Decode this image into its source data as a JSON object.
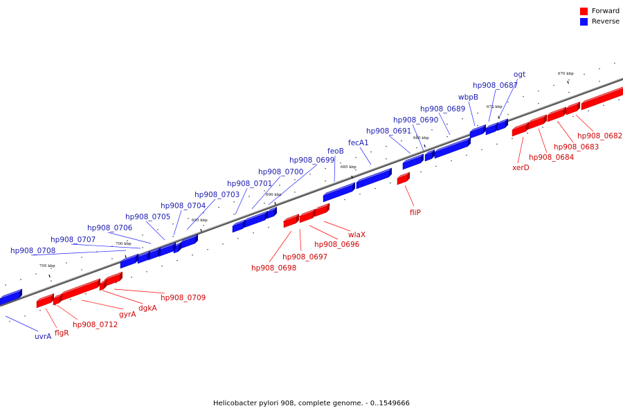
{
  "legend": {
    "forward_label": "Forward",
    "reverse_label": "Reverse",
    "forward_color": "#ff0000",
    "reverse_color": "#1010ff"
  },
  "caption": "Helicobacter pylori 908, complete genome. - 0..1549666",
  "ticks": [
    "670 kbp",
    "675 kbp",
    "680 kbp",
    "685 kbp",
    "690 kbp",
    "695 kbp",
    "700 kbp",
    "705 kbp"
  ],
  "genes": [
    {
      "name": "ogt",
      "strand": "reverse"
    },
    {
      "name": "hp908_0687",
      "strand": "reverse"
    },
    {
      "name": "wbpB",
      "strand": "reverse"
    },
    {
      "name": "hp908_0689",
      "strand": "reverse"
    },
    {
      "name": "hp908_0690",
      "strand": "reverse"
    },
    {
      "name": "hp908_0691",
      "strand": "reverse"
    },
    {
      "name": "fecA1",
      "strand": "reverse"
    },
    {
      "name": "feoB",
      "strand": "reverse"
    },
    {
      "name": "hp908_0699",
      "strand": "reverse"
    },
    {
      "name": "hp908_0700",
      "strand": "reverse"
    },
    {
      "name": "hp908_0701",
      "strand": "reverse"
    },
    {
      "name": "hp908_0703",
      "strand": "reverse"
    },
    {
      "name": "hp908_0704",
      "strand": "reverse"
    },
    {
      "name": "hp908_0705",
      "strand": "reverse"
    },
    {
      "name": "hp908_0706",
      "strand": "reverse"
    },
    {
      "name": "hp908_0707",
      "strand": "reverse"
    },
    {
      "name": "hp908_0708",
      "strand": "reverse"
    },
    {
      "name": "uvrA",
      "strand": "reverse"
    },
    {
      "name": "hp908_0682",
      "strand": "forward"
    },
    {
      "name": "hp908_0683",
      "strand": "forward"
    },
    {
      "name": "hp908_0684",
      "strand": "forward"
    },
    {
      "name": "xerD",
      "strand": "forward"
    },
    {
      "name": "fliP",
      "strand": "forward"
    },
    {
      "name": "wlaX",
      "strand": "forward"
    },
    {
      "name": "hp908_0696",
      "strand": "forward"
    },
    {
      "name": "hp908_0697",
      "strand": "forward"
    },
    {
      "name": "hp908_0698",
      "strand": "forward"
    },
    {
      "name": "hp908_0709",
      "strand": "forward"
    },
    {
      "name": "dgkA",
      "strand": "forward"
    },
    {
      "name": "gyrA",
      "strand": "forward"
    },
    {
      "name": "hp908_0712",
      "strand": "forward"
    },
    {
      "name": "flgR",
      "strand": "forward"
    }
  ]
}
